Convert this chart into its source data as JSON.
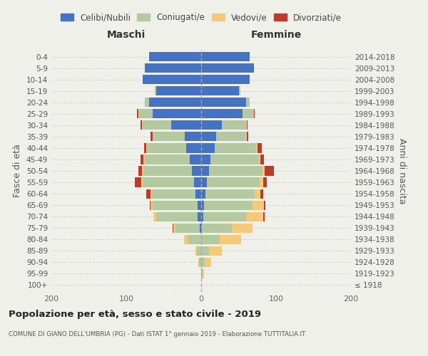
{
  "age_groups": [
    "100+",
    "95-99",
    "90-94",
    "85-89",
    "80-84",
    "75-79",
    "70-74",
    "65-69",
    "60-64",
    "55-59",
    "50-54",
    "45-49",
    "40-44",
    "35-39",
    "30-34",
    "25-29",
    "20-24",
    "15-19",
    "10-14",
    "5-9",
    "0-4"
  ],
  "birth_years": [
    "≤ 1918",
    "1919-1923",
    "1924-1928",
    "1929-1933",
    "1934-1938",
    "1939-1943",
    "1944-1948",
    "1949-1953",
    "1954-1958",
    "1959-1963",
    "1964-1968",
    "1969-1973",
    "1974-1978",
    "1979-1983",
    "1984-1988",
    "1989-1993",
    "1994-1998",
    "1999-2003",
    "2004-2008",
    "2009-2013",
    "2014-2018"
  ],
  "colors": {
    "celibe": "#4472c4",
    "coniugato": "#b5c9a1",
    "vedovo": "#f5c97a",
    "divorziato": "#c0392b"
  },
  "males": {
    "celibe": [
      0,
      0,
      0,
      0,
      0,
      2,
      5,
      5,
      8,
      10,
      12,
      15,
      20,
      22,
      40,
      65,
      70,
      60,
      78,
      75,
      70
    ],
    "coniugato": [
      0,
      0,
      3,
      6,
      18,
      32,
      55,
      60,
      58,
      68,
      65,
      60,
      52,
      42,
      38,
      18,
      5,
      2,
      0,
      0,
      0
    ],
    "vedovo": [
      0,
      0,
      1,
      2,
      5,
      3,
      4,
      3,
      2,
      2,
      2,
      2,
      1,
      1,
      1,
      1,
      0,
      0,
      0,
      0,
      0
    ],
    "divorziato": [
      0,
      0,
      0,
      0,
      0,
      1,
      0,
      1,
      5,
      9,
      5,
      4,
      3,
      3,
      2,
      2,
      0,
      0,
      0,
      0,
      0
    ]
  },
  "females": {
    "nubile": [
      0,
      0,
      0,
      0,
      0,
      1,
      3,
      4,
      6,
      8,
      10,
      12,
      18,
      20,
      28,
      55,
      60,
      50,
      65,
      70,
      65
    ],
    "coniugata": [
      0,
      2,
      5,
      10,
      25,
      40,
      58,
      65,
      65,
      70,
      72,
      65,
      55,
      40,
      32,
      15,
      5,
      2,
      0,
      0,
      0
    ],
    "vedova": [
      0,
      2,
      8,
      18,
      28,
      28,
      22,
      15,
      8,
      5,
      3,
      2,
      2,
      1,
      1,
      0,
      0,
      0,
      0,
      0,
      0
    ],
    "divorziata": [
      0,
      0,
      0,
      0,
      0,
      0,
      2,
      2,
      4,
      5,
      12,
      5,
      6,
      2,
      1,
      1,
      0,
      0,
      0,
      0,
      0
    ]
  },
  "xlim": [
    -200,
    200
  ],
  "xticks": [
    -200,
    -100,
    0,
    100,
    200
  ],
  "xticklabels": [
    "200",
    "100",
    "0",
    "100",
    "200"
  ],
  "title": "Popolazione per età, sesso e stato civile - 2019",
  "subtitle": "COMUNE DI GIANO DELL'UMBRIA (PG) - Dati ISTAT 1° gennaio 2019 - Elaborazione TUTTITALIA.IT",
  "ylabel_left": "Fasce di età",
  "ylabel_right": "Anni di nascita",
  "header_maschi": "Maschi",
  "header_femmine": "Femmine",
  "legend_labels": [
    "Celibi/Nubili",
    "Coniugati/e",
    "Vedovi/e",
    "Divorziati/e"
  ],
  "bg_color": "#f0f0eb"
}
